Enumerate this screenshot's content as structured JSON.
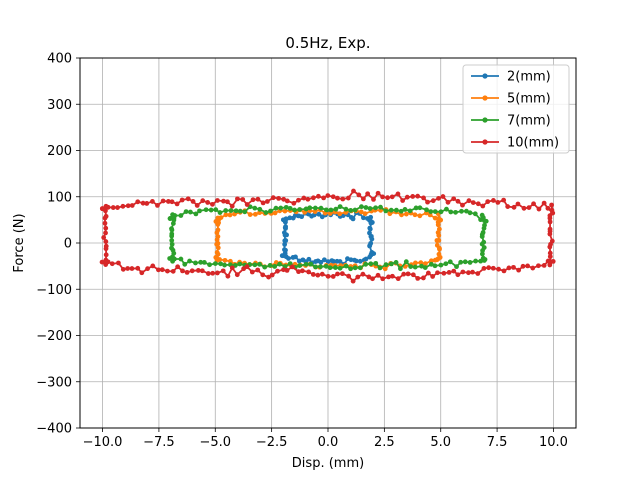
{
  "chart_data": {
    "type": "line",
    "title": "0.5Hz, Exp.",
    "xlabel": "Disp. (mm)",
    "ylabel": "Force (N)",
    "xlim": [
      -11.0,
      11.0
    ],
    "ylim": [
      -400,
      400
    ],
    "x_ticks": [
      -10.0,
      -7.5,
      -5.0,
      -2.5,
      0.0,
      2.5,
      5.0,
      7.5,
      10.0
    ],
    "x_tick_labels": [
      "−10.0",
      "−7.5",
      "−5.0",
      "−2.5",
      "0.0",
      "2.5",
      "5.0",
      "7.5",
      "10.0"
    ],
    "y_ticks": [
      -400,
      -300,
      -200,
      -100,
      0,
      100,
      200,
      300,
      400
    ],
    "y_tick_labels": [
      "−400",
      "−300",
      "−200",
      "−100",
      "0",
      "100",
      "200",
      "300",
      "400"
    ],
    "grid": true,
    "legend_position": "top-right",
    "marker": "circle",
    "series": [
      {
        "name": "2(mm)",
        "color": "#1f77b4",
        "amplitude": 2,
        "top_force": 58,
        "bottom_force": -34,
        "transition_force": 18,
        "noise": 7
      },
      {
        "name": "5(mm)",
        "color": "#ff7f0e",
        "amplitude": 5,
        "top_force": 65,
        "bottom_force": -45,
        "transition_force": 22,
        "noise": 6
      },
      {
        "name": "7(mm)",
        "color": "#2ca02c",
        "amplitude": 7,
        "top_force": 70,
        "bottom_force": -45,
        "transition_force": 25,
        "noise": 6
      },
      {
        "name": "10(mm)",
        "color": "#d62728",
        "amplitude": 10,
        "top_force": 90,
        "bottom_force": -60,
        "transition_force": 20,
        "noise": 10
      }
    ]
  }
}
